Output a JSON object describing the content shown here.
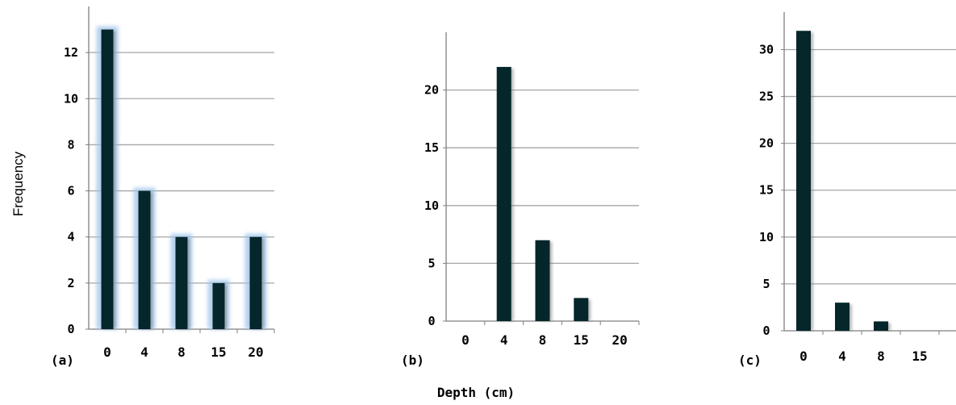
{
  "ylabel": "Frequency",
  "xlabel": "Depth (cm)",
  "colors": {
    "bar": "#05262a",
    "bar_glow": "#9ec3ea",
    "grid": "#a6a6a6",
    "axis": "#7f7f7f"
  },
  "chart_data": [
    {
      "type": "bar",
      "panel_label": "(a)",
      "categories": [
        "0",
        "4",
        "8",
        "15",
        "20"
      ],
      "values": [
        13,
        6,
        4,
        2,
        4
      ],
      "ylim": [
        0,
        14
      ],
      "yticks": [
        0,
        2,
        4,
        6,
        8,
        10,
        12
      ],
      "grid": true,
      "highlighted": true
    },
    {
      "type": "bar",
      "panel_label": "(b)",
      "categories": [
        "0",
        "4",
        "8",
        "15",
        "20"
      ],
      "values": [
        0,
        22,
        7,
        2,
        0
      ],
      "ylim": [
        0,
        25
      ],
      "yticks": [
        0,
        5,
        10,
        15,
        20
      ],
      "grid": true,
      "highlighted": false
    },
    {
      "type": "bar",
      "panel_label": "(c)",
      "categories": [
        "0",
        "4",
        "8",
        "15"
      ],
      "values": [
        32,
        3,
        1,
        0
      ],
      "ylim": [
        0,
        34
      ],
      "yticks": [
        0,
        5,
        10,
        15,
        20,
        25,
        30
      ],
      "grid": true,
      "highlighted": false
    }
  ]
}
